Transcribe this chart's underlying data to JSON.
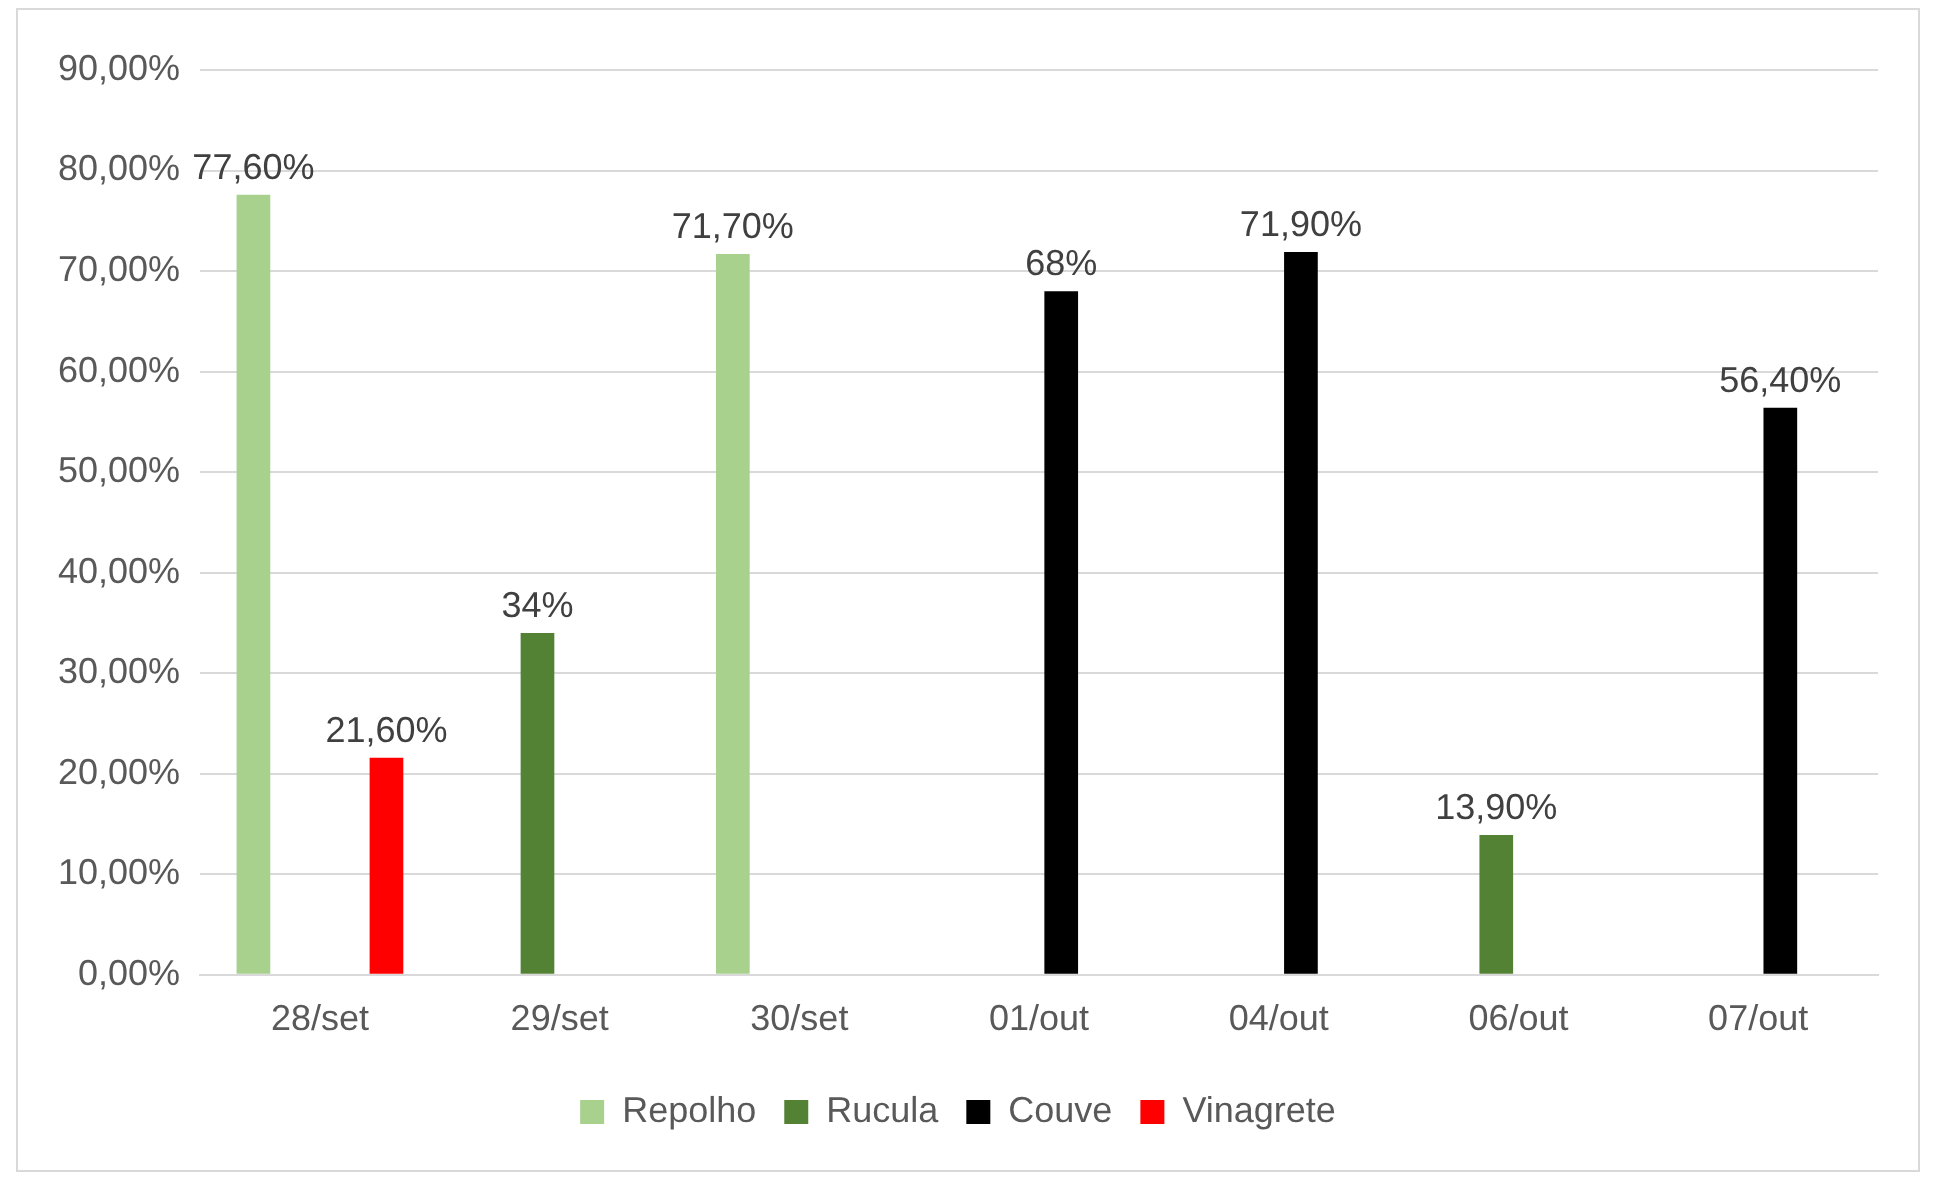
{
  "chart_data": {
    "type": "bar",
    "categories": [
      "28/set",
      "29/set",
      "30/set",
      "01/out",
      "04/out",
      "06/out",
      "07/out"
    ],
    "series": [
      {
        "name": "Repolho",
        "color": "#a9d18e",
        "values": [
          77.6,
          null,
          71.7,
          null,
          null,
          null,
          null
        ],
        "value_labels": [
          "77,60%",
          null,
          "71,70%",
          null,
          null,
          null,
          null
        ]
      },
      {
        "name": "Rucula",
        "color": "#548235",
        "values": [
          null,
          34,
          null,
          null,
          null,
          13.9,
          null
        ],
        "value_labels": [
          null,
          "34%",
          null,
          null,
          null,
          "13,90%",
          null
        ]
      },
      {
        "name": "Couve",
        "color": "#000000",
        "values": [
          null,
          null,
          null,
          68,
          71.9,
          null,
          56.4
        ],
        "value_labels": [
          null,
          null,
          null,
          "68%",
          "71,90%",
          null,
          "56,40%"
        ]
      },
      {
        "name": "Vinagrete",
        "color": "#ff0000",
        "values": [
          21.6,
          null,
          null,
          null,
          null,
          null,
          null
        ],
        "value_labels": [
          "21,60%",
          null,
          null,
          null,
          null,
          null,
          null
        ]
      }
    ],
    "ylim": [
      0,
      90
    ],
    "yticks": [
      {
        "value": 0,
        "label": "0,00%"
      },
      {
        "value": 10,
        "label": "10,00%"
      },
      {
        "value": 20,
        "label": "20,00%"
      },
      {
        "value": 30,
        "label": "30,00%"
      },
      {
        "value": 40,
        "label": "40,00%"
      },
      {
        "value": 50,
        "label": "50,00%"
      },
      {
        "value": 60,
        "label": "60,00%"
      },
      {
        "value": 70,
        "label": "70,00%"
      },
      {
        "value": 80,
        "label": "80,00%"
      },
      {
        "value": 90,
        "label": "90,00%"
      }
    ],
    "grid": "y",
    "legend": "bottom"
  }
}
